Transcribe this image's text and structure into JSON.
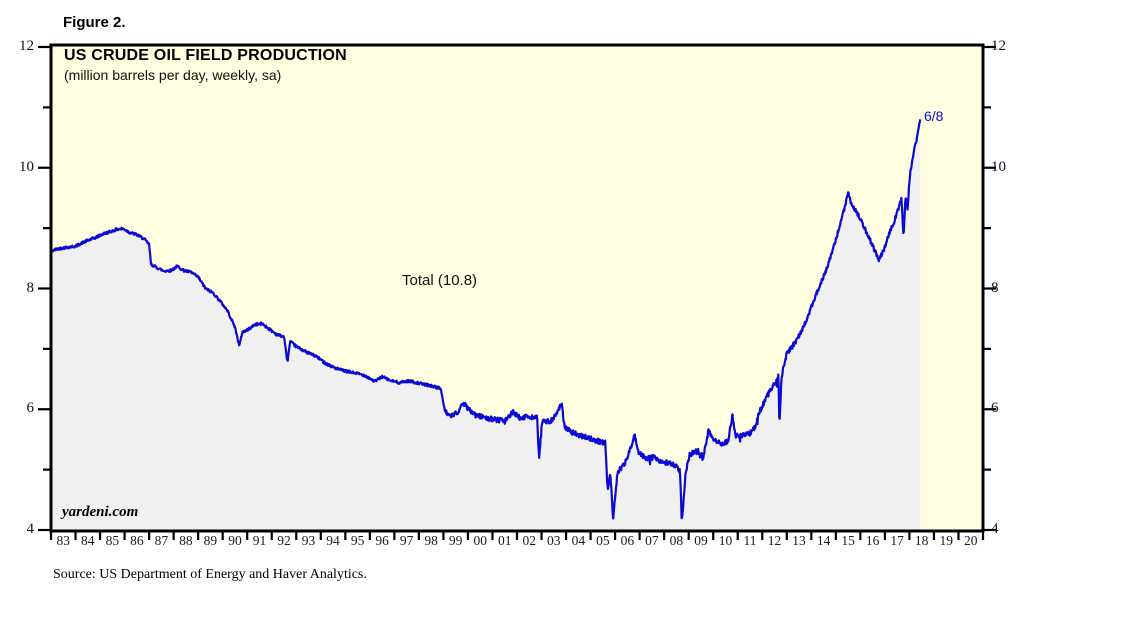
{
  "figure_label": "Figure 2.",
  "source_note": "Source: US Department of Energy and Haver Analytics.",
  "watermark": "yardeni.com",
  "colors": {
    "plot_background": "#FFFEE1",
    "area_fill": "#F0F0F1",
    "line": "#0A0AD2",
    "border": "#000000",
    "annotation_blue": "#0A0AD2"
  },
  "chart_data": {
    "type": "line",
    "title": "US CRUDE OIL FIELD PRODUCTION",
    "subtitle": "(million barrels per day, weekly, sa)",
    "unit": "million barrels per day",
    "series_label": "Total (10.8)",
    "last_point_label": "6/8",
    "last_value": 10.8,
    "grid": false,
    "legend_position": "none",
    "xlim": [
      1983,
      2021
    ],
    "ylim": [
      4,
      12
    ],
    "y_ticks": [
      12,
      10,
      8,
      6,
      4
    ],
    "y_minor_ticks": [
      11,
      9,
      7,
      5
    ],
    "x_tick_labels": [
      "83",
      "84",
      "85",
      "86",
      "87",
      "88",
      "89",
      "90",
      "91",
      "92",
      "93",
      "94",
      "95",
      "96",
      "97",
      "98",
      "99",
      "00",
      "01",
      "02",
      "03",
      "04",
      "05",
      "06",
      "07",
      "08",
      "09",
      "10",
      "11",
      "12",
      "13",
      "14",
      "15",
      "16",
      "17",
      "18",
      "19",
      "20"
    ],
    "series": [
      {
        "name": "Total",
        "points": [
          [
            1983.0,
            8.62
          ],
          [
            1983.3,
            8.66
          ],
          [
            1983.6,
            8.68
          ],
          [
            1984.0,
            8.7
          ],
          [
            1984.4,
            8.78
          ],
          [
            1984.8,
            8.84
          ],
          [
            1985.1,
            8.9
          ],
          [
            1985.4,
            8.94
          ],
          [
            1985.7,
            8.98
          ],
          [
            1985.95,
            8.99
          ],
          [
            1986.2,
            8.93
          ],
          [
            1986.5,
            8.89
          ],
          [
            1986.8,
            8.82
          ],
          [
            1987.0,
            8.73
          ],
          [
            1987.08,
            8.4
          ],
          [
            1987.3,
            8.35
          ],
          [
            1987.6,
            8.29
          ],
          [
            1987.9,
            8.3
          ],
          [
            1988.15,
            8.37
          ],
          [
            1988.4,
            8.3
          ],
          [
            1988.7,
            8.27
          ],
          [
            1989.0,
            8.19
          ],
          [
            1989.3,
            8.0
          ],
          [
            1989.6,
            7.93
          ],
          [
            1989.9,
            7.79
          ],
          [
            1990.2,
            7.63
          ],
          [
            1990.5,
            7.36
          ],
          [
            1990.68,
            7.05
          ],
          [
            1990.8,
            7.28
          ],
          [
            1991.0,
            7.31
          ],
          [
            1991.3,
            7.4
          ],
          [
            1991.6,
            7.42
          ],
          [
            1991.9,
            7.33
          ],
          [
            1992.2,
            7.24
          ],
          [
            1992.5,
            7.2
          ],
          [
            1992.64,
            6.78
          ],
          [
            1992.75,
            7.12
          ],
          [
            1993.0,
            7.04
          ],
          [
            1993.4,
            6.95
          ],
          [
            1993.8,
            6.88
          ],
          [
            1994.2,
            6.76
          ],
          [
            1994.6,
            6.68
          ],
          [
            1995.0,
            6.63
          ],
          [
            1995.4,
            6.6
          ],
          [
            1995.8,
            6.56
          ],
          [
            1996.2,
            6.46
          ],
          [
            1996.5,
            6.54
          ],
          [
            1996.8,
            6.48
          ],
          [
            1997.2,
            6.44
          ],
          [
            1997.6,
            6.47
          ],
          [
            1998.0,
            6.43
          ],
          [
            1998.5,
            6.39
          ],
          [
            1998.9,
            6.34
          ],
          [
            1999.05,
            5.97
          ],
          [
            1999.3,
            5.87
          ],
          [
            1999.55,
            5.94
          ],
          [
            1999.8,
            6.1
          ],
          [
            2000.0,
            6.02
          ],
          [
            2000.3,
            5.9
          ],
          [
            2000.7,
            5.86
          ],
          [
            2001.1,
            5.83
          ],
          [
            2001.5,
            5.8
          ],
          [
            2001.85,
            5.96
          ],
          [
            2002.1,
            5.86
          ],
          [
            2002.5,
            5.88
          ],
          [
            2002.82,
            5.86
          ],
          [
            2002.9,
            5.17
          ],
          [
            2003.02,
            5.79
          ],
          [
            2003.4,
            5.81
          ],
          [
            2003.82,
            6.08
          ],
          [
            2003.93,
            5.72
          ],
          [
            2004.2,
            5.62
          ],
          [
            2004.6,
            5.56
          ],
          [
            2005.0,
            5.51
          ],
          [
            2005.35,
            5.47
          ],
          [
            2005.6,
            5.44
          ],
          [
            2005.7,
            4.62
          ],
          [
            2005.8,
            4.98
          ],
          [
            2005.92,
            4.2
          ],
          [
            2006.1,
            4.96
          ],
          [
            2006.4,
            5.1
          ],
          [
            2006.8,
            5.56
          ],
          [
            2006.95,
            5.28
          ],
          [
            2007.3,
            5.18
          ],
          [
            2007.6,
            5.21
          ],
          [
            2007.9,
            5.11
          ],
          [
            2008.2,
            5.12
          ],
          [
            2008.5,
            5.05
          ],
          [
            2008.65,
            4.96
          ],
          [
            2008.72,
            4.12
          ],
          [
            2008.88,
            4.97
          ],
          [
            2009.05,
            5.26
          ],
          [
            2009.4,
            5.31
          ],
          [
            2009.6,
            5.2
          ],
          [
            2009.8,
            5.64
          ],
          [
            2010.0,
            5.49
          ],
          [
            2010.3,
            5.43
          ],
          [
            2010.6,
            5.47
          ],
          [
            2010.78,
            5.9
          ],
          [
            2010.92,
            5.56
          ],
          [
            2011.2,
            5.56
          ],
          [
            2011.5,
            5.6
          ],
          [
            2011.7,
            5.7
          ],
          [
            2011.85,
            5.92
          ],
          [
            2012.05,
            6.1
          ],
          [
            2012.25,
            6.25
          ],
          [
            2012.45,
            6.4
          ],
          [
            2012.6,
            6.5
          ],
          [
            2012.66,
            6.55
          ],
          [
            2012.7,
            5.72
          ],
          [
            2012.78,
            6.52
          ],
          [
            2012.9,
            6.75
          ],
          [
            2013.0,
            6.93
          ],
          [
            2013.2,
            7.02
          ],
          [
            2013.45,
            7.18
          ],
          [
            2013.7,
            7.38
          ],
          [
            2013.9,
            7.58
          ],
          [
            2014.1,
            7.8
          ],
          [
            2014.35,
            8.05
          ],
          [
            2014.6,
            8.3
          ],
          [
            2014.85,
            8.6
          ],
          [
            2015.05,
            8.88
          ],
          [
            2015.25,
            9.18
          ],
          [
            2015.4,
            9.4
          ],
          [
            2015.5,
            9.61
          ],
          [
            2015.62,
            9.4
          ],
          [
            2015.8,
            9.3
          ],
          [
            2016.0,
            9.15
          ],
          [
            2016.2,
            8.98
          ],
          [
            2016.4,
            8.8
          ],
          [
            2016.6,
            8.62
          ],
          [
            2016.75,
            8.48
          ],
          [
            2016.95,
            8.63
          ],
          [
            2017.15,
            8.88
          ],
          [
            2017.35,
            9.08
          ],
          [
            2017.55,
            9.32
          ],
          [
            2017.68,
            9.5
          ],
          [
            2017.76,
            8.85
          ],
          [
            2017.84,
            9.52
          ],
          [
            2017.92,
            9.32
          ],
          [
            2018.02,
            9.88
          ],
          [
            2018.08,
            10.0
          ],
          [
            2018.16,
            10.25
          ],
          [
            2018.25,
            10.38
          ],
          [
            2018.33,
            10.55
          ],
          [
            2018.44,
            10.8
          ]
        ]
      }
    ]
  }
}
